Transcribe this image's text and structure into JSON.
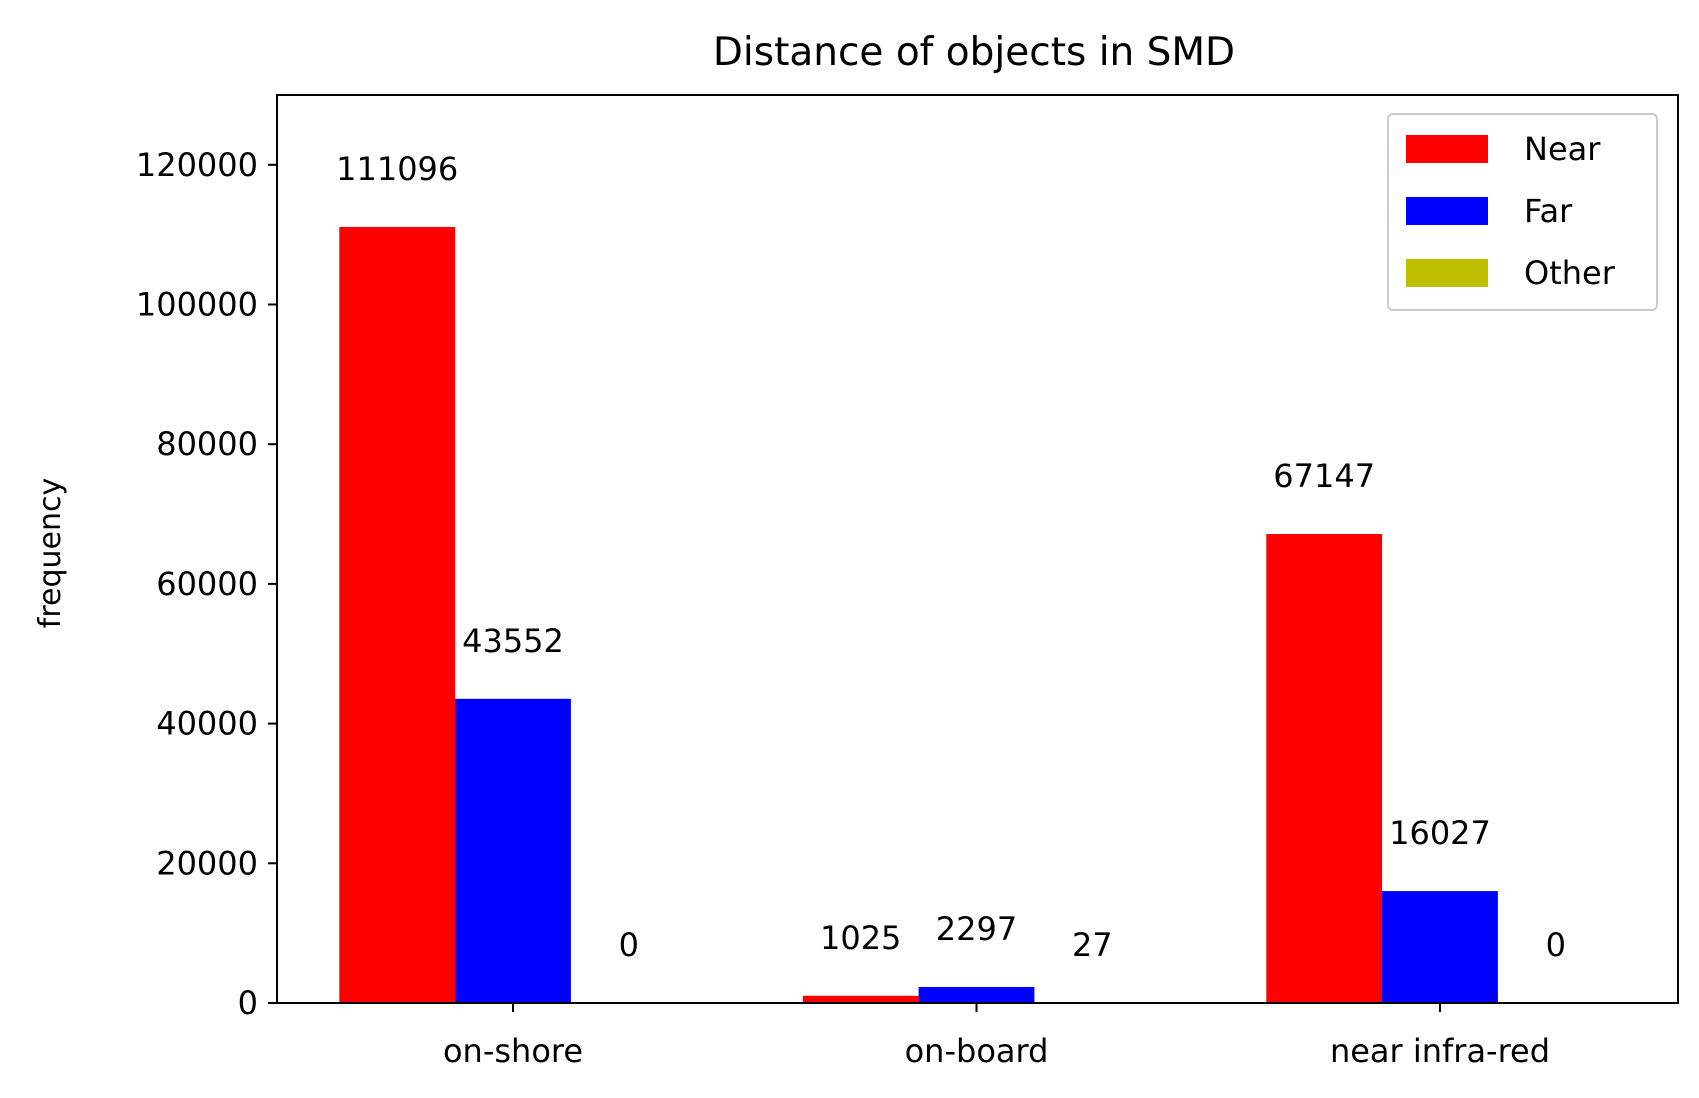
{
  "chart_data": {
    "type": "bar",
    "title": "Distance of objects in SMD",
    "xlabel": "",
    "ylabel": "frequency",
    "categories": [
      "on-shore",
      "on-board",
      "near infra-red"
    ],
    "series": [
      {
        "name": "Near",
        "color": "#ff0000",
        "values": [
          111096,
          1025,
          67147
        ]
      },
      {
        "name": "Far",
        "color": "#0000ff",
        "values": [
          43552,
          2297,
          16027
        ]
      },
      {
        "name": "Other",
        "color": "#bfbf00",
        "values": [
          0,
          27,
          0
        ]
      }
    ],
    "ylim": [
      0,
      130000
    ],
    "yticks": [
      0,
      20000,
      40000,
      60000,
      80000,
      100000,
      120000
    ],
    "grid": false,
    "legend_position": "top-right"
  }
}
